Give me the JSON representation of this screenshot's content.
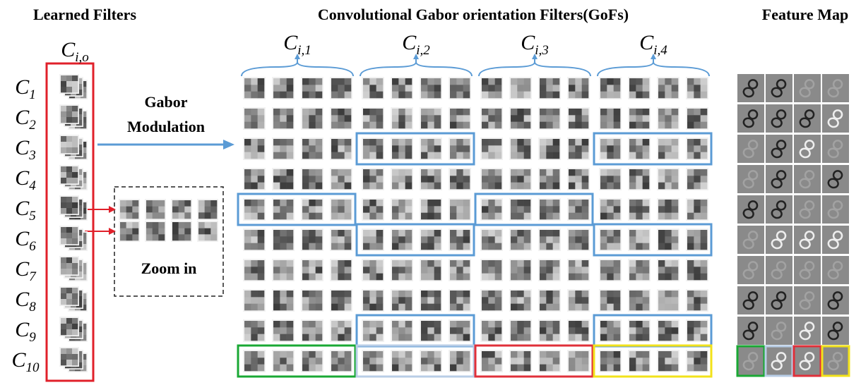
{
  "titles": {
    "learned_filters": "Learned Filters",
    "gofs": "Convolutional Gabor orientation Filters(GoFs)",
    "feature_map": "Feature Map"
  },
  "input_label": {
    "letter": "C",
    "sub": "i,o"
  },
  "filter_labels": [
    {
      "letter": "C",
      "sub": "1"
    },
    {
      "letter": "C",
      "sub": "2"
    },
    {
      "letter": "C",
      "sub": "3"
    },
    {
      "letter": "C",
      "sub": "4"
    },
    {
      "letter": "C",
      "sub": "5"
    },
    {
      "letter": "C",
      "sub": "6"
    },
    {
      "letter": "C",
      "sub": "7"
    },
    {
      "letter": "C",
      "sub": "8"
    },
    {
      "letter": "C",
      "sub": "9"
    },
    {
      "letter": "C",
      "sub": "10"
    }
  ],
  "group_labels": [
    {
      "letter": "C",
      "sub": "i,1"
    },
    {
      "letter": "C",
      "sub": "i,2"
    },
    {
      "letter": "C",
      "sub": "i,3"
    },
    {
      "letter": "C",
      "sub": "i,4"
    }
  ],
  "gabor_label": [
    "Gabor",
    "Modulation"
  ],
  "zoom_label": "Zoom in"
}
